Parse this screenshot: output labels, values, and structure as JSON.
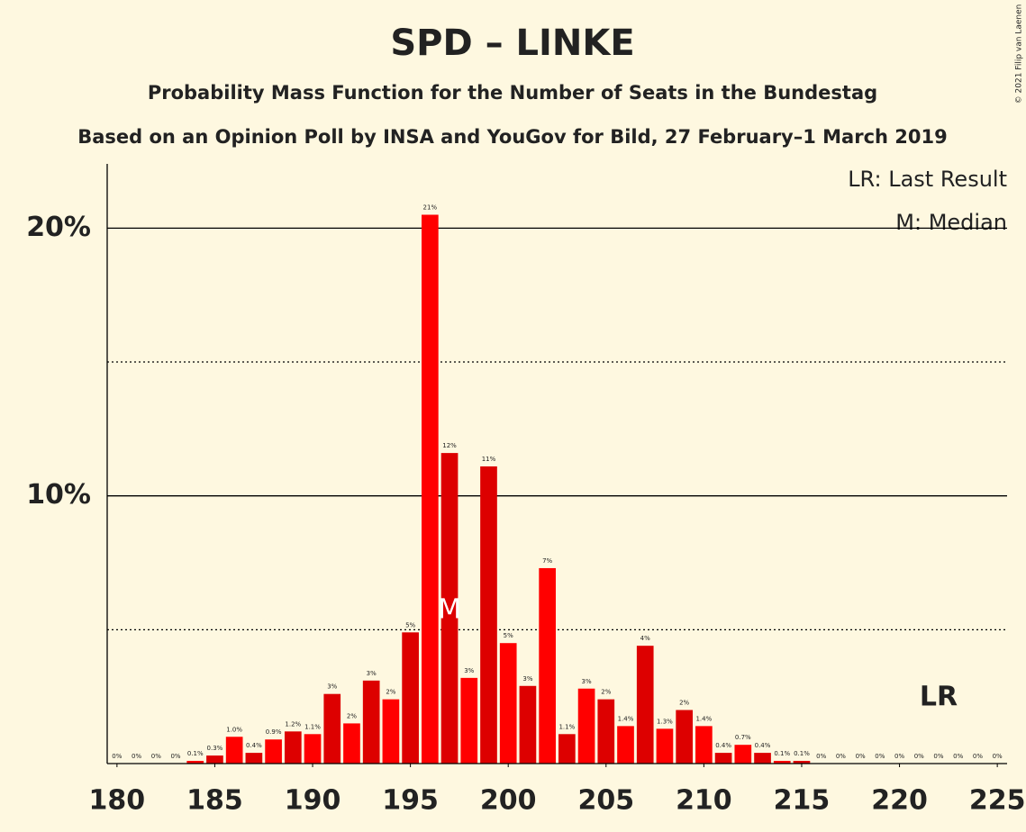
{
  "chart_data": {
    "type": "bar",
    "title": "SPD – LINKE",
    "subtitle": "Probability Mass Function for the Number of Seats in the Bundestag",
    "subtitle2": "Based on an Opinion Poll by INSA and YouGov for Bild, 27 February–1 March 2019",
    "copyright": "© 2021 Filip van Laenen",
    "legend": [
      "LR: Last Result",
      "M: Median"
    ],
    "x": [
      180,
      181,
      182,
      183,
      184,
      185,
      186,
      187,
      188,
      189,
      190,
      191,
      192,
      193,
      194,
      195,
      196,
      197,
      198,
      199,
      200,
      201,
      202,
      203,
      204,
      205,
      206,
      207,
      208,
      209,
      210,
      211,
      212,
      213,
      214,
      215,
      216,
      217,
      218,
      219,
      220,
      221,
      222,
      223,
      224,
      225
    ],
    "values": [
      0,
      0,
      0,
      0,
      0.1,
      0.3,
      1.0,
      0.4,
      0.9,
      1.2,
      1.1,
      2.6,
      1.5,
      3.1,
      2.4,
      4.9,
      20.5,
      11.6,
      3.2,
      11.1,
      4.5,
      2.9,
      7.3,
      1.1,
      2.8,
      2.4,
      1.4,
      4.4,
      1.3,
      2.0,
      1.4,
      0.4,
      0.7,
      0.4,
      0.1,
      0.1,
      0,
      0,
      0,
      0,
      0,
      0,
      0,
      0,
      0,
      0
    ],
    "value_labels": [
      "0%",
      "0%",
      "0%",
      "0%",
      "0.1%",
      "0.3%",
      "1.0%",
      "0.4%",
      "0.9%",
      "1.2%",
      "1.1%",
      "3%",
      "2%",
      "3%",
      "2%",
      "5%",
      "21%",
      "12%",
      "3%",
      "11%",
      "5%",
      "3%",
      "7%",
      "1.1%",
      "3%",
      "2%",
      "1.4%",
      "4%",
      "1.3%",
      "2%",
      "1.4%",
      "0.4%",
      "0.7%",
      "0.4%",
      "0.1%",
      "0.1%",
      "0%",
      "0%",
      "0%",
      "0%",
      "0%",
      "0%",
      "0%",
      "0%",
      "0%",
      "0%"
    ],
    "colors": [
      "#ff0000",
      "#dd0000"
    ],
    "xlim": [
      179.5,
      225.5
    ],
    "xticks": [
      180,
      185,
      190,
      195,
      200,
      205,
      210,
      215,
      220,
      225
    ],
    "ylim": [
      0,
      22.4
    ],
    "yticks": [
      {
        "value": 10,
        "label": "10%"
      },
      {
        "value": 20,
        "label": "20%"
      }
    ],
    "minor_yticks": [
      5,
      15
    ],
    "median": 197,
    "median_label": "M",
    "last_result": 222,
    "last_result_label": "LR"
  }
}
